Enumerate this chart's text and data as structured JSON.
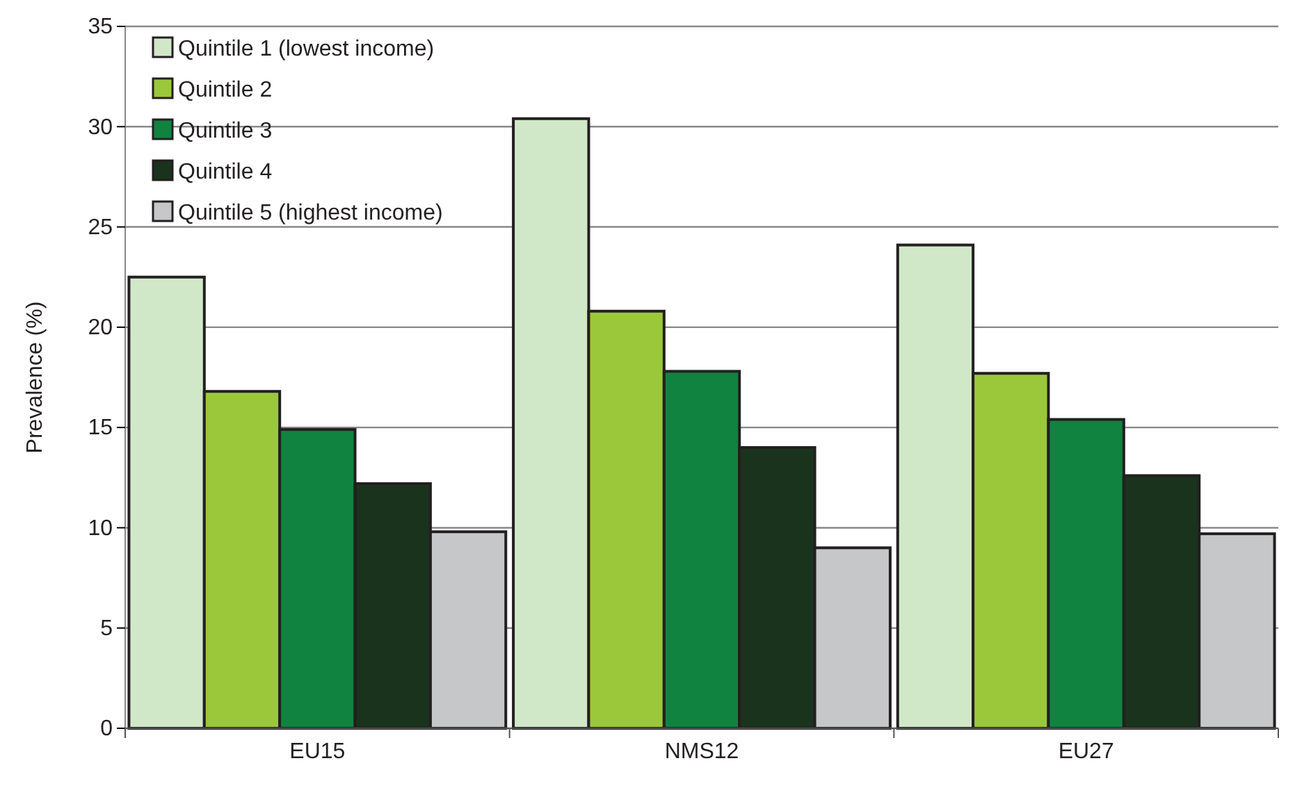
{
  "chart_data": {
    "type": "bar",
    "ylabel": "Prevalence (%)",
    "categories": [
      "EU15",
      "NMS12",
      "EU27"
    ],
    "series": [
      {
        "name": "Quintile 1 (lowest income)",
        "color": "#d0e8c8",
        "values": [
          22.5,
          30.4,
          24.1
        ]
      },
      {
        "name": "Quintile 2",
        "color": "#9bc83a",
        "values": [
          16.8,
          20.8,
          17.7
        ]
      },
      {
        "name": "Quintile 3",
        "color": "#108340",
        "values": [
          14.9,
          17.8,
          15.4
        ]
      },
      {
        "name": "Quintile 4",
        "color": "#1a331c",
        "values": [
          12.2,
          14.0,
          12.6
        ]
      },
      {
        "name": "Quintile 5 (highest income)",
        "color": "#c6c7c9",
        "values": [
          9.8,
          9.0,
          9.7
        ]
      }
    ],
    "ylim": [
      0,
      35
    ],
    "yticks": [
      0,
      5,
      10,
      15,
      20,
      25,
      30,
      35
    ],
    "grid": "y",
    "legend": "top left"
  }
}
